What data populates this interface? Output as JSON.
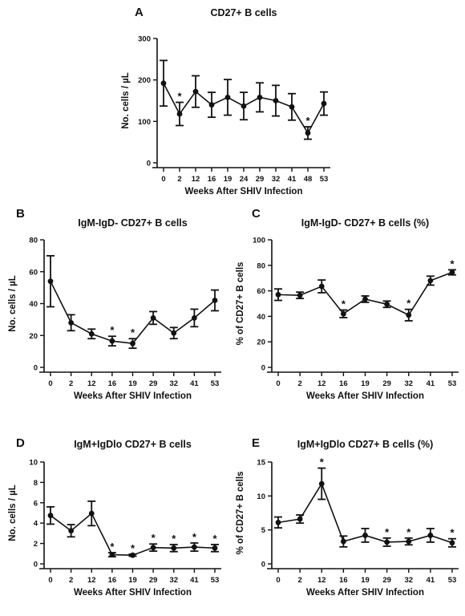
{
  "chart_data": [
    {
      "panel": "A",
      "type": "line",
      "title": "CD27+ B cells",
      "xlabel": "Weeks After SHIV Infection",
      "ylabel": "No. cells / µL",
      "categories": [
        "0",
        "2",
        "12",
        "16",
        "19",
        "24",
        "29",
        "32",
        "41",
        "48",
        "53"
      ],
      "values": [
        192,
        118,
        172,
        140,
        158,
        137,
        158,
        150,
        135,
        72,
        143
      ],
      "errors": [
        55,
        28,
        38,
        30,
        43,
        33,
        35,
        37,
        32,
        15,
        28
      ],
      "significant": [
        false,
        true,
        false,
        false,
        false,
        false,
        false,
        false,
        false,
        true,
        false
      ],
      "ylim": [
        0,
        300
      ],
      "yticks": [
        0,
        100,
        200,
        300
      ],
      "grid": false
    },
    {
      "panel": "B",
      "type": "line",
      "title": "IgM-IgD- CD27+ B cells",
      "xlabel": "Weeks After SHIV Infection",
      "ylabel": "No. cells / µL",
      "categories": [
        "0",
        "2",
        "12",
        "16",
        "19",
        "29",
        "32",
        "41",
        "53"
      ],
      "values": [
        54,
        28,
        21,
        16.5,
        15,
        31,
        21.5,
        31,
        42
      ],
      "errors": [
        16,
        5,
        3,
        3,
        3,
        4,
        3.5,
        5.5,
        6.5
      ],
      "significant": [
        false,
        false,
        false,
        true,
        true,
        false,
        false,
        false,
        false
      ],
      "ylim": [
        0,
        80
      ],
      "yticks": [
        0,
        20,
        40,
        60,
        80
      ],
      "grid": false
    },
    {
      "panel": "C",
      "type": "line",
      "title": "IgM-IgD- CD27+ B cells (%)",
      "xlabel": "Weeks After SHIV Infection",
      "ylabel": "% of CD27+ B cells",
      "categories": [
        "0",
        "2",
        "12",
        "16",
        "19",
        "29",
        "32",
        "41",
        "53"
      ],
      "values": [
        57,
        56.5,
        63.5,
        42,
        53.5,
        49.5,
        41,
        68,
        74.5
      ],
      "errors": [
        4.5,
        2.5,
        5,
        3,
        2.5,
        2.5,
        4.5,
        3.5,
        2
      ],
      "significant": [
        false,
        false,
        false,
        true,
        false,
        false,
        true,
        false,
        true
      ],
      "ylim": [
        0,
        100
      ],
      "yticks": [
        0,
        20,
        40,
        60,
        80,
        100
      ],
      "grid": false
    },
    {
      "panel": "D",
      "type": "line",
      "title": "IgM+IgDlo CD27+ B cells",
      "xlabel": "Weeks After SHIV Infection",
      "ylabel": "No. cells / µL",
      "categories": [
        "0",
        "2",
        "12",
        "16",
        "19",
        "29",
        "32",
        "41",
        "53"
      ],
      "values": [
        4.75,
        3.25,
        4.95,
        0.9,
        0.85,
        1.6,
        1.55,
        1.65,
        1.55
      ],
      "errors": [
        0.85,
        0.6,
        1.2,
        0.2,
        0.1,
        0.35,
        0.35,
        0.4,
        0.35
      ],
      "significant": [
        false,
        false,
        false,
        true,
        true,
        true,
        true,
        true,
        true
      ],
      "ylim": [
        0,
        10
      ],
      "yticks": [
        0,
        2,
        4,
        6,
        8,
        10
      ],
      "grid": false
    },
    {
      "panel": "E",
      "type": "line",
      "title": "IgM+IgDlo CD27+ B cells (%)",
      "xlabel": "Weeks After SHIV Infection",
      "ylabel": "% of CD27+ B cells",
      "categories": [
        "0",
        "2",
        "12",
        "16",
        "19",
        "29",
        "32",
        "41",
        "53"
      ],
      "values": [
        6.1,
        6.6,
        11.8,
        3.3,
        4.2,
        3.2,
        3.3,
        4.2,
        3.1
      ],
      "errors": [
        0.8,
        0.6,
        2.3,
        0.8,
        1.0,
        0.6,
        0.5,
        1.0,
        0.6
      ],
      "significant": [
        false,
        false,
        true,
        false,
        false,
        true,
        true,
        false,
        true
      ],
      "ylim": [
        0,
        15
      ],
      "yticks": [
        0,
        5,
        10,
        15
      ],
      "grid": false
    }
  ]
}
